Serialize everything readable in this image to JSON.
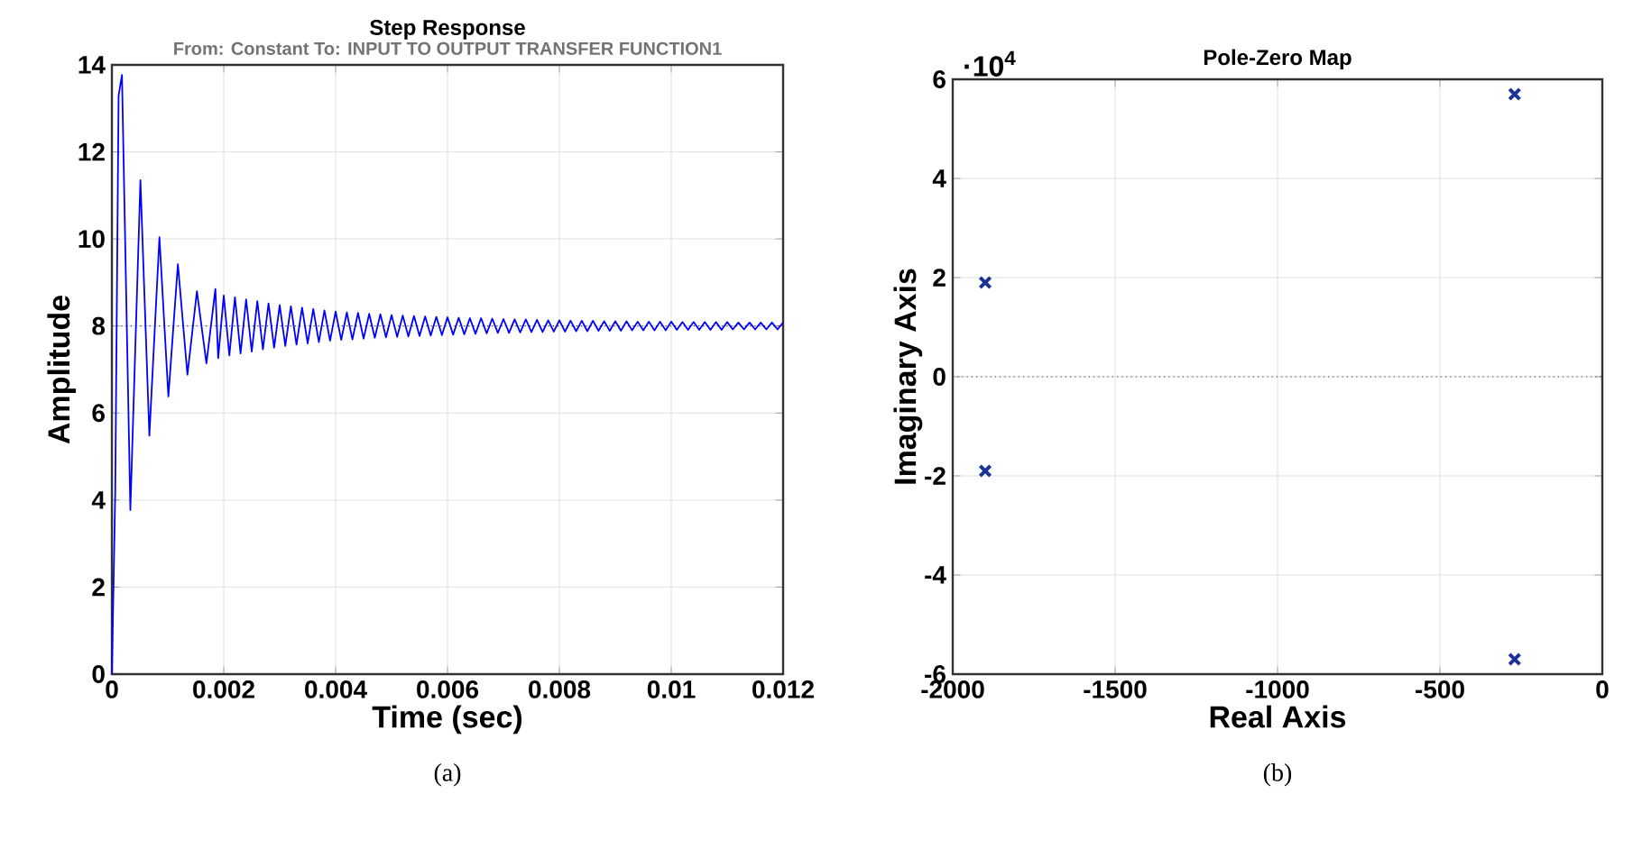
{
  "chart_data": [
    {
      "type": "line",
      "title": "Step Response",
      "subtitle": "From: Constant To: INPUT TO OUTPUT TRANSFER FUNCTION1",
      "xlabel": "Time (sec)",
      "ylabel": "Amplitude",
      "annotations": [
        "(a)"
      ],
      "x": [
        0,
        6e-05,
        0.00012,
        0.00018,
        0.00033,
        0.00051,
        0.00067,
        0.00085,
        0.00101,
        0.00118,
        0.00135,
        0.00152,
        0.00169,
        0.00185,
        0.0019,
        0.002,
        0.0021,
        0.0022,
        0.0023,
        0.0024,
        0.0025,
        0.0026,
        0.0027,
        0.0028,
        0.0029,
        0.003,
        0.0031,
        0.0032,
        0.0033,
        0.0034,
        0.0035,
        0.0036,
        0.0037,
        0.0038,
        0.0039,
        0.004,
        0.0041,
        0.0042,
        0.0043,
        0.0044,
        0.0045,
        0.0046,
        0.0047,
        0.0048,
        0.0049,
        0.005,
        0.0051,
        0.0052,
        0.0053,
        0.0054,
        0.0055,
        0.0056,
        0.0057,
        0.0058,
        0.0059,
        0.006,
        0.0061,
        0.0062,
        0.0063,
        0.0064,
        0.0065,
        0.0066,
        0.0067,
        0.0068,
        0.0069,
        0.007,
        0.0071,
        0.0072,
        0.0073,
        0.0074,
        0.0075,
        0.0076,
        0.0077,
        0.0078,
        0.0079,
        0.008,
        0.0081,
        0.0082,
        0.0083,
        0.0084,
        0.0085,
        0.0086,
        0.0087,
        0.0088,
        0.0089,
        0.009,
        0.0091,
        0.0092,
        0.0093,
        0.0094,
        0.0095,
        0.0096,
        0.0097,
        0.0098,
        0.0099,
        0.01,
        0.0101,
        0.0102,
        0.0103,
        0.0104,
        0.0105,
        0.0106,
        0.0107,
        0.0108,
        0.0109,
        0.011,
        0.0111,
        0.0112,
        0.0113,
        0.0114,
        0.0115,
        0.0116,
        0.0117,
        0.0118,
        0.0119,
        0.012
      ],
      "values": [
        0,
        4.2,
        13.3,
        13.77,
        3.77,
        11.35,
        5.48,
        10.04,
        6.38,
        9.42,
        6.88,
        8.8,
        7.14,
        8.85,
        7.26,
        8.7,
        7.32,
        8.66,
        7.37,
        8.61,
        7.41,
        8.57,
        7.46,
        8.52,
        7.5,
        8.48,
        7.54,
        8.45,
        7.57,
        8.42,
        7.6,
        8.39,
        7.63,
        8.36,
        7.66,
        8.33,
        7.68,
        8.31,
        7.69,
        8.3,
        7.71,
        8.28,
        7.73,
        8.27,
        7.74,
        8.25,
        7.75,
        8.24,
        7.76,
        8.23,
        7.77,
        8.22,
        7.78,
        8.21,
        7.79,
        8.2,
        7.8,
        8.19,
        7.81,
        8.18,
        7.82,
        8.18,
        7.83,
        8.17,
        7.84,
        8.16,
        7.84,
        8.15,
        7.85,
        8.15,
        7.86,
        8.14,
        7.86,
        8.13,
        7.87,
        8.13,
        7.87,
        8.12,
        7.88,
        8.12,
        7.88,
        8.12,
        7.89,
        8.11,
        7.89,
        8.11,
        7.89,
        8.11,
        7.9,
        8.1,
        7.9,
        8.1,
        7.9,
        8.1,
        7.9,
        8.1,
        7.91,
        8.09,
        7.91,
        8.09,
        7.91,
        8.09,
        7.91,
        8.09,
        7.91,
        8.09,
        7.92,
        8.08,
        7.92,
        8.08,
        7.92,
        8.08,
        7.92,
        8.08,
        7.92,
        8.08
      ],
      "color": "#0000ff",
      "line_style": "solid",
      "xlim": [
        0,
        0.012
      ],
      "ylim": [
        0,
        14
      ],
      "xticks": [
        0,
        0.002,
        0.004,
        0.006,
        0.008,
        0.01,
        0.012
      ],
      "yticks": [
        0,
        2,
        4,
        6,
        8,
        10,
        12,
        14
      ],
      "grid": true,
      "ref_lines": [
        {
          "axis": "y",
          "value": 8,
          "color": "#404040",
          "line_style": "dotted"
        }
      ]
    },
    {
      "type": "scatter",
      "title": "Pole-Zero Map",
      "xlabel": "Real Axis",
      "ylabel": "Imaginary Axis",
      "annotations": [
        "·10$^{4}$",
        "(b)"
      ],
      "x": [
        -1900,
        -1900,
        -270,
        -270
      ],
      "values": [
        1.9,
        -1.9,
        5.7,
        -5.7
      ],
      "color": "#1a3399",
      "marker": "cross",
      "xlim": [
        -2000,
        0
      ],
      "ylim": [
        -6,
        6
      ],
      "xticks": [
        -2000,
        -1500,
        -1000,
        -500,
        0
      ],
      "yticks": [
        -6,
        -4,
        -2,
        0,
        2,
        4,
        6
      ],
      "grid": true,
      "ref_lines": [
        {
          "axis": "y",
          "value": 0,
          "color": "#404040",
          "line_style": "dotted"
        }
      ]
    }
  ]
}
